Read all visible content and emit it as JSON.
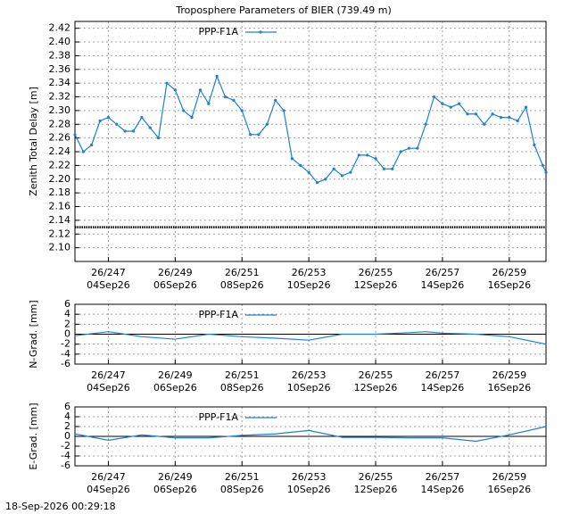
{
  "title": "Troposphere Parameters of BIER (739.49 m)",
  "timestamp": "18-Sep-2026 00:29:18",
  "chart_data": [
    {
      "type": "line",
      "y_label": "Zenith Total Delay [m]",
      "ylim": [
        2.08,
        2.43
      ],
      "yticks": [
        {
          "value": 2.1,
          "label": "2.10"
        },
        {
          "value": 2.12,
          "label": "2.12"
        },
        {
          "value": 2.14,
          "label": "2.14"
        },
        {
          "value": 2.16,
          "label": "2.16"
        },
        {
          "value": 2.18,
          "label": "2.18"
        },
        {
          "value": 2.2,
          "label": "2.20"
        },
        {
          "value": 2.22,
          "label": "2.22"
        },
        {
          "value": 2.24,
          "label": "2.24"
        },
        {
          "value": 2.26,
          "label": "2.26"
        },
        {
          "value": 2.28,
          "label": "2.28"
        },
        {
          "value": 2.3,
          "label": "2.30"
        },
        {
          "value": 2.32,
          "label": "2.32"
        },
        {
          "value": 2.34,
          "label": "2.34"
        },
        {
          "value": 2.36,
          "label": "2.36"
        },
        {
          "value": 2.38,
          "label": "2.38"
        },
        {
          "value": 2.4,
          "label": "2.40"
        },
        {
          "value": 2.42,
          "label": "2.42"
        }
      ],
      "xlim": [
        246,
        260.1
      ],
      "xticks": [
        {
          "value": 247,
          "label": "26/247"
        },
        {
          "value": 249,
          "label": "26/249"
        },
        {
          "value": 251,
          "label": "26/251"
        },
        {
          "value": 253,
          "label": "26/253"
        },
        {
          "value": 255,
          "label": "26/255"
        },
        {
          "value": 257,
          "label": "26/257"
        },
        {
          "value": 259,
          "label": "26/259"
        }
      ],
      "xtick_dates": [
        "04Sep26",
        "06Sep26",
        "08Sep26",
        "10Sep26",
        "12Sep26",
        "14Sep26",
        "16Sep26"
      ],
      "reference_line": 2.13,
      "grid": true,
      "series": [
        {
          "name": "PPP-F1A",
          "color": "#1e7fd6",
          "x": [
            246,
            246.25,
            246.5,
            246.75,
            247,
            247.25,
            247.5,
            247.75,
            248,
            248.25,
            248.5,
            248.75,
            249,
            249.25,
            249.5,
            249.75,
            250,
            250.25,
            250.5,
            250.75,
            251,
            251.25,
            251.5,
            251.75,
            252,
            252.25,
            252.5,
            252.75,
            253,
            253.25,
            253.5,
            253.75,
            254,
            254.25,
            254.5,
            254.75,
            255,
            255.25,
            255.5,
            255.75,
            256,
            256.25,
            256.5,
            256.75,
            257,
            257.25,
            257.5,
            257.75,
            258,
            258.25,
            258.5,
            258.75,
            259,
            259.25,
            259.5,
            259.75,
            260,
            260.1
          ],
          "values": [
            2.265,
            2.24,
            2.25,
            2.285,
            2.29,
            2.28,
            2.27,
            2.27,
            2.29,
            2.275,
            2.26,
            2.34,
            2.33,
            2.3,
            2.29,
            2.33,
            2.31,
            2.35,
            2.32,
            2.315,
            2.3,
            2.265,
            2.265,
            2.28,
            2.315,
            2.3,
            2.23,
            2.22,
            2.21,
            2.195,
            2.2,
            2.215,
            2.205,
            2.21,
            2.235,
            2.235,
            2.23,
            2.215,
            2.215,
            2.24,
            2.245,
            2.245,
            2.28,
            2.32,
            2.31,
            2.305,
            2.31,
            2.295,
            2.295,
            2.28,
            2.295,
            2.29,
            2.29,
            2.285,
            2.305,
            2.25,
            2.22,
            2.21
          ]
        }
      ]
    },
    {
      "type": "line",
      "y_label": "N-Grad. [mm]",
      "ylim": [
        -6,
        6
      ],
      "yticks": [
        -6,
        -4,
        -2,
        0,
        2,
        4,
        6
      ],
      "xlim": [
        246,
        260.1
      ],
      "xticks": [
        {
          "value": 247,
          "label": "26/247"
        },
        {
          "value": 249,
          "label": "26/249"
        },
        {
          "value": 251,
          "label": "26/251"
        },
        {
          "value": 253,
          "label": "26/253"
        },
        {
          "value": 255,
          "label": "26/255"
        },
        {
          "value": 257,
          "label": "26/257"
        },
        {
          "value": 259,
          "label": "26/259"
        }
      ],
      "xtick_dates": [
        "04Sep26",
        "06Sep26",
        "08Sep26",
        "10Sep26",
        "12Sep26",
        "14Sep26",
        "16Sep26"
      ],
      "grid": true,
      "series": [
        {
          "name": "PPP-F1A",
          "color": "#1e7fd6",
          "x": [
            246,
            247,
            248,
            249,
            250,
            251,
            252,
            253,
            254,
            255,
            256,
            256.5,
            257,
            258,
            259,
            260.1
          ],
          "values": [
            -0.3,
            0.5,
            -0.5,
            -1,
            0,
            -0.5,
            -0.8,
            -1.2,
            0,
            0,
            0.3,
            0.5,
            0.2,
            0,
            -0.5,
            -2
          ]
        }
      ]
    },
    {
      "type": "line",
      "y_label": "E-Grad. [mm]",
      "ylim": [
        -6,
        6
      ],
      "yticks": [
        -6,
        -4,
        -2,
        0,
        2,
        4,
        6
      ],
      "xlim": [
        246,
        260.1
      ],
      "xticks": [
        {
          "value": 247,
          "label": "26/247"
        },
        {
          "value": 249,
          "label": "26/249"
        },
        {
          "value": 251,
          "label": "26/251"
        },
        {
          "value": 253,
          "label": "26/253"
        },
        {
          "value": 255,
          "label": "26/255"
        },
        {
          "value": 257,
          "label": "26/257"
        },
        {
          "value": 259,
          "label": "26/259"
        }
      ],
      "xtick_dates": [
        "04Sep26",
        "06Sep26",
        "08Sep26",
        "10Sep26",
        "12Sep26",
        "14Sep26",
        "16Sep26"
      ],
      "grid": true,
      "series": [
        {
          "name": "PPP-F1A",
          "color": "#1e7fd6",
          "x": [
            246,
            247,
            248,
            249,
            250,
            251,
            252,
            253,
            254,
            255,
            256,
            257,
            258,
            259,
            260.1
          ],
          "values": [
            0.5,
            -0.8,
            0.3,
            -0.3,
            -0.3,
            0.2,
            0.5,
            1.2,
            -0.2,
            -0.2,
            -0.3,
            -0.3,
            -1,
            0.3,
            2
          ]
        }
      ]
    }
  ]
}
